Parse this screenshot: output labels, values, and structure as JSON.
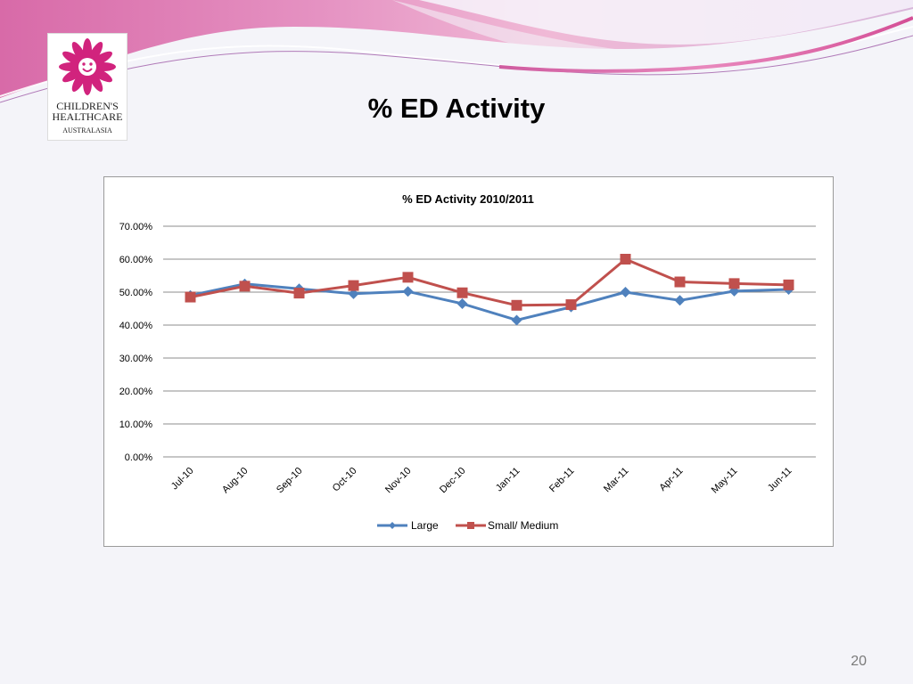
{
  "slide": {
    "title": "% ED Activity",
    "page_number": "20"
  },
  "logo": {
    "line1": "CHILDREN'S",
    "line2": "HEALTHCARE",
    "line3": "AUSTRALASIA",
    "icon": "sun-flower-logo-icon",
    "color": "#d1237d"
  },
  "colors": {
    "banner_pink": "#d65fa3",
    "banner_light": "#e7a3c8",
    "series_large": "#4f81bd",
    "series_small_medium": "#c0504d"
  },
  "chart_data": {
    "type": "line",
    "title": "% ED Activity 2010/2011",
    "xlabel": "",
    "ylabel": "",
    "categories": [
      "Jul-10",
      "Aug-10",
      "Sep-10",
      "Oct-10",
      "Nov-10",
      "Dec-10",
      "Jan-11",
      "Feb-11",
      "Mar-11",
      "Apr-11",
      "May-11",
      "Jun-11"
    ],
    "ylim": [
      0,
      70
    ],
    "yticks": [
      "0.00%",
      "10.00%",
      "20.00%",
      "30.00%",
      "40.00%",
      "50.00%",
      "60.00%",
      "70.00%"
    ],
    "grid": true,
    "legend": "bottom",
    "series": [
      {
        "name": "Large",
        "color": "#4f81bd",
        "marker": "diamond",
        "values": [
          49.0,
          52.5,
          51.0,
          49.5,
          50.2,
          46.5,
          41.5,
          45.5,
          50.0,
          47.5,
          50.3,
          50.8
        ]
      },
      {
        "name": "Small/ Medium",
        "color": "#c0504d",
        "marker": "square",
        "values": [
          48.5,
          51.8,
          49.7,
          52.0,
          54.5,
          49.8,
          46.0,
          46.2,
          60.0,
          53.1,
          52.6,
          52.2
        ]
      }
    ]
  }
}
